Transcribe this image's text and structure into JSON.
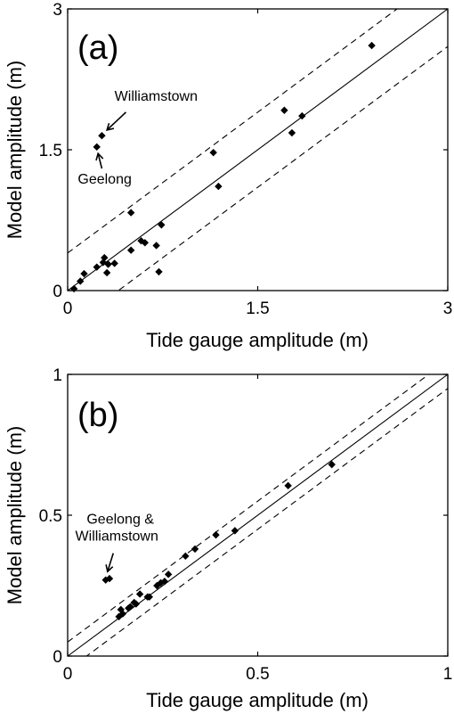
{
  "chart_data": [
    {
      "type": "scatter",
      "panel_label": "(a)",
      "xlabel": "Tide gauge amplitude (m)",
      "ylabel": "Model amplitude (m)",
      "xlim": [
        0,
        3
      ],
      "ylim": [
        0,
        3
      ],
      "xticks": [
        "0",
        "1.5",
        "3"
      ],
      "yticks": [
        "0",
        "1.5",
        "3"
      ],
      "xtick_values": [
        0,
        1.5,
        3
      ],
      "ytick_values": [
        0,
        1.5,
        3
      ],
      "reference_lines": [
        {
          "style": "solid",
          "offset": 0
        },
        {
          "style": "dashed",
          "offset": 0.4
        },
        {
          "style": "dashed",
          "offset": -0.4
        }
      ],
      "points": [
        {
          "x": 0.05,
          "y": 0.02
        },
        {
          "x": 0.1,
          "y": 0.1
        },
        {
          "x": 0.13,
          "y": 0.18
        },
        {
          "x": 0.23,
          "y": 0.25
        },
        {
          "x": 0.28,
          "y": 0.3
        },
        {
          "x": 0.29,
          "y": 0.35
        },
        {
          "x": 0.31,
          "y": 0.19
        },
        {
          "x": 0.32,
          "y": 0.28
        },
        {
          "x": 0.37,
          "y": 0.29
        },
        {
          "x": 0.5,
          "y": 0.43
        },
        {
          "x": 0.5,
          "y": 0.83
        },
        {
          "x": 0.58,
          "y": 0.53
        },
        {
          "x": 0.61,
          "y": 0.51
        },
        {
          "x": 0.7,
          "y": 0.48
        },
        {
          "x": 0.72,
          "y": 0.2
        },
        {
          "x": 0.74,
          "y": 0.7
        },
        {
          "x": 0.23,
          "y": 1.53
        },
        {
          "x": 0.27,
          "y": 1.65
        },
        {
          "x": 1.15,
          "y": 1.47
        },
        {
          "x": 1.19,
          "y": 1.11
        },
        {
          "x": 1.71,
          "y": 1.92
        },
        {
          "x": 1.77,
          "y": 1.68
        },
        {
          "x": 1.85,
          "y": 1.86
        },
        {
          "x": 2.4,
          "y": 2.61
        }
      ],
      "annotations": [
        {
          "text": "Williamstown",
          "x": 0.37,
          "y": 2.02,
          "arrow_from": [
            0.46,
            1.9
          ],
          "arrow_to": [
            0.31,
            1.71
          ]
        },
        {
          "text": "Geelong",
          "x": 0.08,
          "y": 1.14,
          "arrow_from": [
            0.27,
            1.3
          ],
          "arrow_to": [
            0.24,
            1.46
          ]
        }
      ]
    },
    {
      "type": "scatter",
      "panel_label": "(b)",
      "xlabel": "Tide gauge amplitude (m)",
      "ylabel": "Model amplitude (m)",
      "xlim": [
        0,
        1
      ],
      "ylim": [
        0,
        1
      ],
      "xticks": [
        "0",
        "0.5",
        "1"
      ],
      "yticks": [
        "0",
        "0.5",
        "1"
      ],
      "xtick_values": [
        0,
        0.5,
        1
      ],
      "ytick_values": [
        0,
        0.5,
        1
      ],
      "reference_lines": [
        {
          "style": "solid",
          "offset": 0
        },
        {
          "style": "dashed",
          "offset": 0.05
        },
        {
          "style": "dashed",
          "offset": -0.05
        }
      ],
      "points": [
        {
          "x": 0.1,
          "y": 0.27
        },
        {
          "x": 0.11,
          "y": 0.275
        },
        {
          "x": 0.135,
          "y": 0.14
        },
        {
          "x": 0.14,
          "y": 0.165
        },
        {
          "x": 0.145,
          "y": 0.15
        },
        {
          "x": 0.16,
          "y": 0.17
        },
        {
          "x": 0.165,
          "y": 0.175
        },
        {
          "x": 0.175,
          "y": 0.19
        },
        {
          "x": 0.18,
          "y": 0.185
        },
        {
          "x": 0.19,
          "y": 0.22
        },
        {
          "x": 0.21,
          "y": 0.21
        },
        {
          "x": 0.215,
          "y": 0.21
        },
        {
          "x": 0.235,
          "y": 0.25
        },
        {
          "x": 0.245,
          "y": 0.26
        },
        {
          "x": 0.255,
          "y": 0.265
        },
        {
          "x": 0.265,
          "y": 0.29
        },
        {
          "x": 0.31,
          "y": 0.355
        },
        {
          "x": 0.335,
          "y": 0.38
        },
        {
          "x": 0.39,
          "y": 0.43
        },
        {
          "x": 0.44,
          "y": 0.445
        },
        {
          "x": 0.58,
          "y": 0.605
        },
        {
          "x": 0.695,
          "y": 0.68
        }
      ],
      "annotations": [
        {
          "text": "Geelong &",
          "x": 0.05,
          "y": 0.47
        },
        {
          "text": "Williamstown",
          "x": 0.02,
          "y": 0.41,
          "arrow_from": [
            0.12,
            0.365
          ],
          "arrow_to": [
            0.105,
            0.3
          ]
        }
      ]
    }
  ]
}
